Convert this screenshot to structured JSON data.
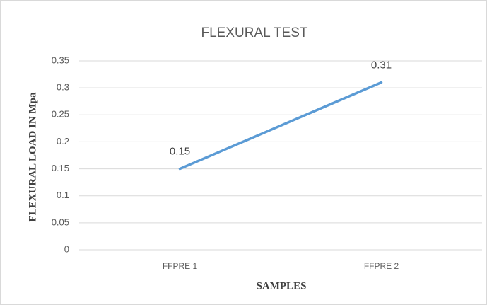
{
  "chart_data": {
    "type": "line",
    "title": "FLEXURAL TEST",
    "x_label": "SAMPLES",
    "y_label": "FLEXURAL LOAD IN Mpa",
    "categories": [
      "FFPRE 1",
      "FFPRE 2"
    ],
    "values": [
      0.15,
      0.31
    ],
    "color": "#5b9bd5",
    "ylim": [
      0,
      0.35
    ],
    "yticks": [
      0,
      0.05,
      0.1,
      0.15,
      0.2,
      0.25,
      0.3,
      0.35
    ],
    "grid": true
  }
}
